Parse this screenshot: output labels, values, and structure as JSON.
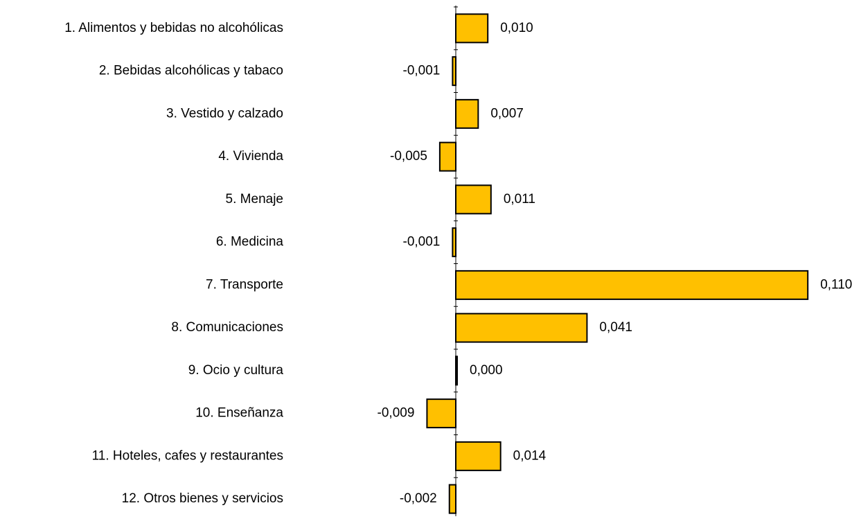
{
  "chart_data": {
    "type": "bar",
    "orientation": "horizontal",
    "categories": [
      "1. Alimentos y bebidas no alcohólicas",
      "2. Bebidas alcohólicas y tabaco",
      "3. Vestido y calzado",
      "4. Vivienda",
      "5. Menaje",
      "6. Medicina",
      "7. Transporte",
      "8. Comunicaciones",
      "9. Ocio y cultura",
      "10. Enseñanza",
      "11. Hoteles, cafes y restaurantes",
      "12. Otros bienes y servicios"
    ],
    "values": [
      0.01,
      -0.001,
      0.007,
      -0.005,
      0.011,
      -0.001,
      0.11,
      0.041,
      0.0,
      -0.009,
      0.014,
      -0.002
    ],
    "value_labels": [
      "0,010",
      "-0,001",
      "0,007",
      "-0,005",
      "0,011",
      "-0,001",
      "0,110",
      "0,041",
      "0,000",
      "-0,009",
      "0,014",
      "-0,002"
    ],
    "title": "",
    "xlabel": "",
    "ylabel": "",
    "xlim": [
      -0.014,
      0.12
    ],
    "grid": false,
    "legend": "none",
    "colors": {
      "bar_fill": "#FFC000",
      "bar_stroke": "#000000",
      "axis": "#000000",
      "text": "#000000"
    }
  }
}
